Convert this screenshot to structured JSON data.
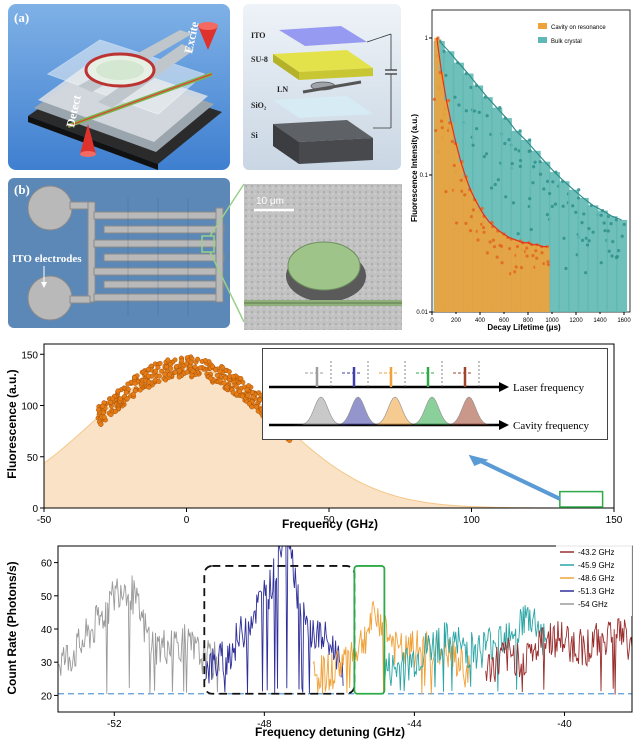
{
  "panel_a": {
    "label": "(a)",
    "excite_label": "Excite",
    "detect_label": "Detect"
  },
  "layers": {
    "labels": [
      "ITO",
      "SU-8",
      "LN",
      "SiO₂",
      "Si"
    ]
  },
  "panel_b": {
    "label": "(b)",
    "electrodes_label": "ITO electrodes",
    "scale_bar_label": "10 μm"
  },
  "chart_data": [
    {
      "id": "decay",
      "type": "bar",
      "xlabel": "Decay Lifetime (μs)",
      "ylabel": "Fluorescence Intensity (a.u.)",
      "xlim": [
        0,
        1650
      ],
      "ylim": [
        0.01,
        1.6
      ],
      "yscale": "log",
      "xticks": [
        "0",
        "400",
        "800",
        "1200",
        "1600"
      ],
      "xticks_minor": [
        "200",
        "600",
        "1000",
        "1400"
      ],
      "yticks": [
        "0.01",
        "0.1",
        "1"
      ],
      "legend_position": "top-right",
      "series": [
        {
          "name": "Cavity on resonance",
          "color": "#f0a23a",
          "x": [
            40,
            80,
            120,
            160,
            200,
            240,
            280,
            320,
            360,
            400,
            440,
            480,
            520,
            560,
            600,
            640,
            680,
            720,
            760,
            800,
            840,
            880,
            920,
            960
          ],
          "values": [
            1.0,
            0.56,
            0.35,
            0.24,
            0.17,
            0.125,
            0.097,
            0.078,
            0.066,
            0.057,
            0.05,
            0.045,
            0.042,
            0.039,
            0.037,
            0.035,
            0.034,
            0.033,
            0.032,
            0.032,
            0.031,
            0.031,
            0.03,
            0.03
          ]
        },
        {
          "name": "Bulk crystal",
          "color": "#5fb8b4",
          "x": [
            60,
            140,
            220,
            300,
            380,
            460,
            540,
            620,
            700,
            780,
            860,
            940,
            1020,
            1100,
            1180,
            1260,
            1340,
            1420,
            1500,
            1580
          ],
          "values": [
            0.95,
            0.8,
            0.66,
            0.55,
            0.45,
            0.37,
            0.31,
            0.26,
            0.21,
            0.18,
            0.15,
            0.125,
            0.105,
            0.09,
            0.078,
            0.068,
            0.06,
            0.055,
            0.05,
            0.047
          ]
        }
      ]
    },
    {
      "id": "spectrum",
      "type": "scatter",
      "xlabel": "Frequency (GHz)",
      "ylabel": "Fluorescence (a.u.)",
      "xlim": [
        -50,
        150
      ],
      "ylim": [
        0,
        160
      ],
      "xticks": [
        "-50",
        "0",
        "50",
        "100",
        "150"
      ],
      "yticks": [
        "0",
        "50",
        "100",
        "150"
      ],
      "envelope": {
        "center": 0,
        "sigma": 33,
        "amplitude": 138,
        "color": "#f6cfa0"
      },
      "points": {
        "color": "#e57c16",
        "x_range": [
          -31,
          37
        ],
        "spread": 10
      },
      "highlight_box_x": [
        131,
        146
      ],
      "inset": {
        "laser_label": "Laser frequency",
        "cavity_label": "Cavity frequency",
        "peak_colors": [
          "#9e9e9e",
          "#3f3fa6",
          "#f0a23a",
          "#2eaa49",
          "#a0442c"
        ]
      }
    },
    {
      "id": "count_rate",
      "type": "line",
      "xlabel": "Frequency detuning (GHz)",
      "ylabel": "Count Rate (Photons/s)",
      "xlim": [
        -53.5,
        -38.2
      ],
      "ylim": [
        15,
        65
      ],
      "xticks": [
        "-52",
        "-48",
        "-44",
        "-40"
      ],
      "yticks": [
        "20",
        "30",
        "40",
        "50",
        "60"
      ],
      "baseline": 20.5,
      "legend_position": "top-right",
      "series": [
        {
          "name": "-43.2 GHz",
          "color": "#9a2d2d",
          "x_range": [
            -42.1,
            -38.2
          ],
          "peaks": [
            [
              -41.5,
              4,
              0.3
            ],
            [
              -40.3,
              10,
              0.5
            ],
            [
              -39.0,
              8,
              0.5
            ],
            [
              -38.5,
              7,
              0.3
            ]
          ],
          "base": 27
        },
        {
          "name": "-45.9 GHz",
          "color": "#2aa5a5",
          "x_range": [
            -44.8,
            -40.5
          ],
          "peaks": [
            [
              -43.2,
              9,
              0.6
            ],
            [
              -41.4,
              12,
              0.6
            ],
            [
              -40.8,
              8,
              0.3
            ]
          ],
          "base": 27
        },
        {
          "name": "-48.6 GHz",
          "color": "#f0a23a",
          "x_range": [
            -46.7,
            -42.5
          ],
          "peaks": [
            [
              -45.0,
              16,
              0.3
            ],
            [
              -45.7,
              6,
              0.3
            ],
            [
              -44.0,
              7,
              0.5
            ],
            [
              -43.2,
              5,
              0.4
            ]
          ],
          "base": 26
        },
        {
          "name": "-51.3 GHz",
          "color": "#2f2f9a",
          "x_range": [
            -49.6,
            -45.9
          ],
          "peaks": [
            [
              -48.3,
              10,
              0.5
            ],
            [
              -47.4,
              24,
              0.2
            ],
            [
              -47.6,
              18,
              0.5
            ],
            [
              -46.5,
              8,
              0.4
            ]
          ],
          "base": 28
        },
        {
          "name": "-54 GHz",
          "color": "#9a9a9a",
          "x_range": [
            -53.5,
            -49.2
          ],
          "peaks": [
            [
              -51.7,
              22,
              0.4
            ],
            [
              -52.5,
              8,
              0.4
            ],
            [
              -50.3,
              6,
              0.4
            ]
          ],
          "base": 30
        }
      ],
      "dashed_box_x": [
        -49.6,
        -45.6
      ],
      "green_box_x": [
        -45.6,
        -44.8
      ]
    }
  ]
}
